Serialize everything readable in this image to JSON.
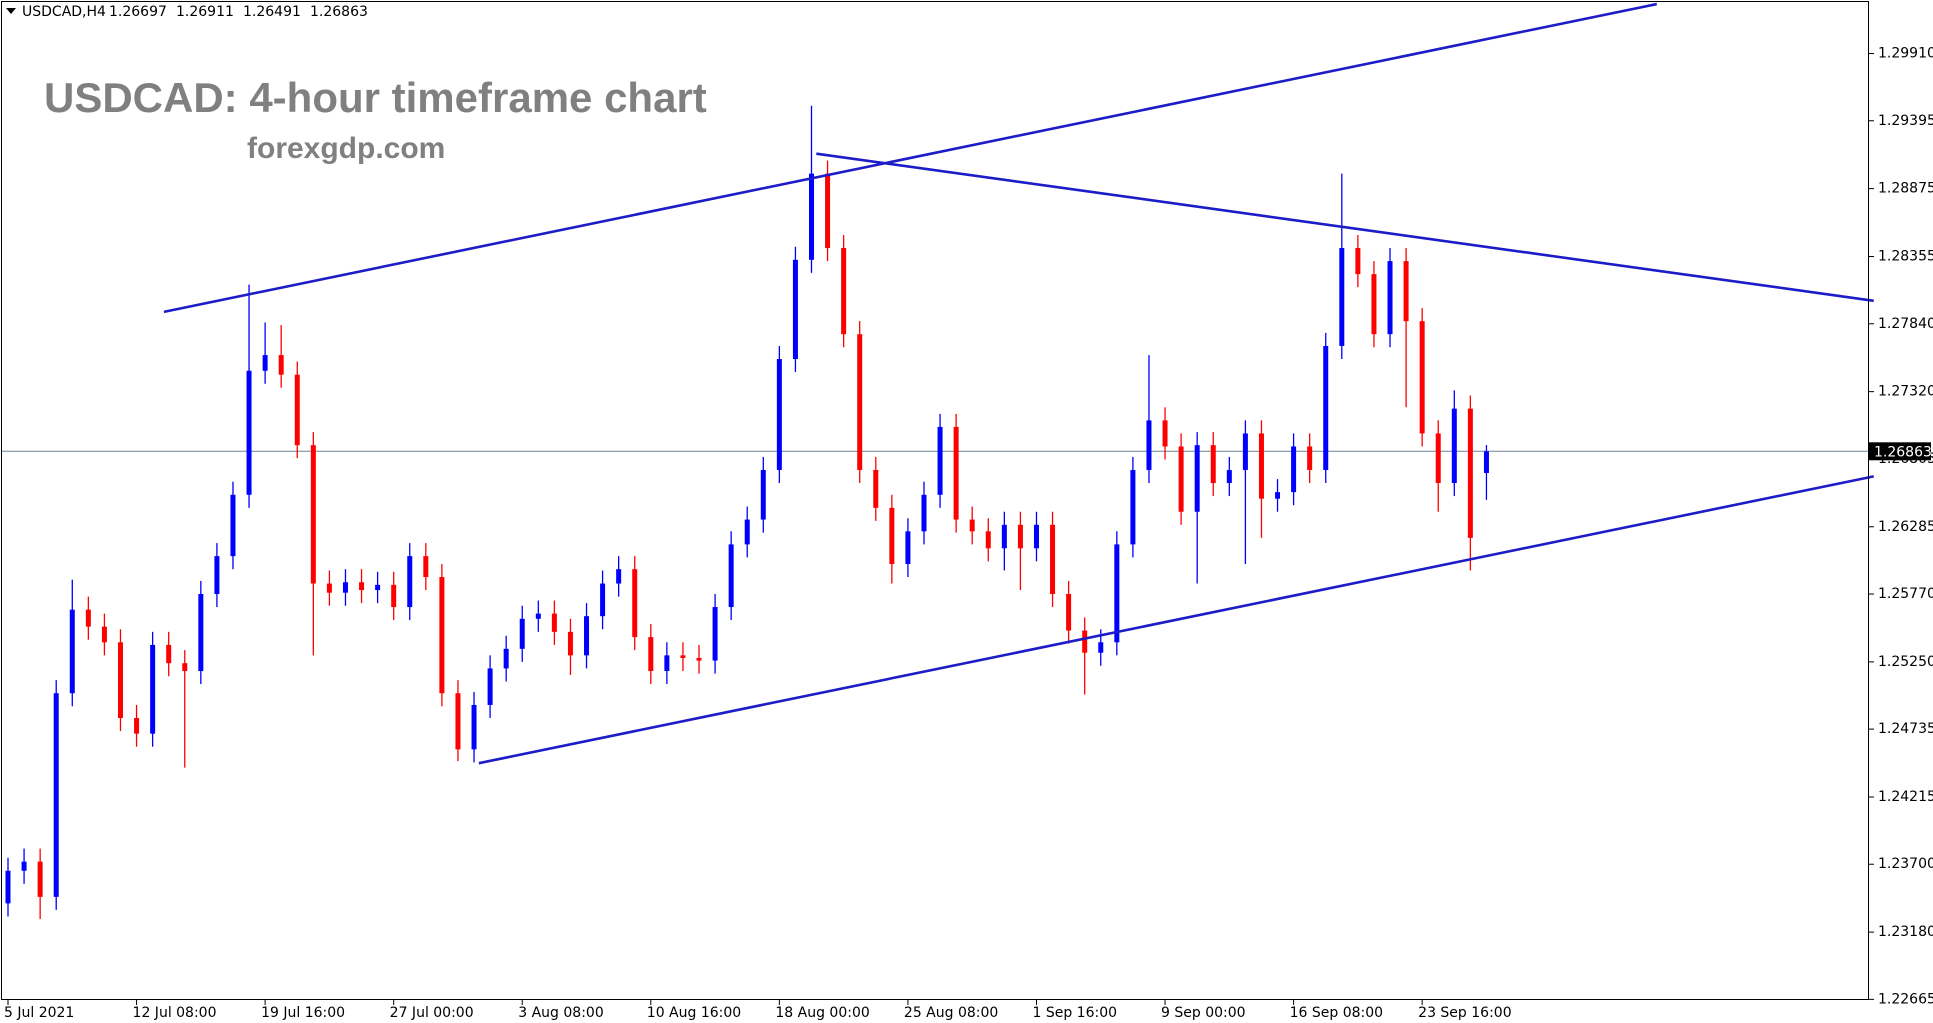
{
  "chart_data": {
    "type": "candlestick",
    "symbol": "USDCAD,H4",
    "title": "USDCAD: 4-hour timeframe chart",
    "subtitle": "forexgdp.com",
    "up_color": "#0000ff",
    "down_color": "#ff0000",
    "trendline_color": "#1c1cc8",
    "price_line_color": "#6f8596",
    "categories": [
      "5 Jul 2021",
      null,
      null,
      null,
      null,
      null,
      null,
      null,
      "12 Jul 08:00",
      null,
      null,
      null,
      null,
      null,
      null,
      null,
      "19 Jul 16:00",
      null,
      null,
      null,
      null,
      null,
      null,
      null,
      "27 Jul 00:00",
      null,
      null,
      null,
      null,
      null,
      null,
      null,
      "3 Aug 08:00",
      null,
      null,
      null,
      null,
      null,
      null,
      null,
      "10 Aug 16:00",
      null,
      null,
      null,
      null,
      null,
      null,
      null,
      "18 Aug 00:00",
      null,
      null,
      null,
      null,
      null,
      null,
      null,
      "25 Aug 08:00",
      null,
      null,
      null,
      null,
      null,
      null,
      null,
      "1 Sep 16:00",
      null,
      null,
      null,
      null,
      null,
      null,
      null,
      "9 Sep 00:00",
      null,
      null,
      null,
      null,
      null,
      null,
      null,
      "16 Sep 08:00",
      null,
      null,
      null,
      null,
      null,
      null,
      null,
      "23 Sep 16:00",
      null,
      null,
      null,
      null
    ],
    "open": [
      1.234,
      1.2365,
      1.2372,
      1.2345,
      1.2501,
      1.2565,
      1.2552,
      1.254,
      1.2482,
      1.247,
      1.2538,
      1.2524,
      1.2518,
      1.2577,
      1.2606,
      1.2653,
      1.2748,
      1.276,
      1.2745,
      1.2691,
      1.2585,
      1.2578,
      1.2586,
      1.258,
      1.2584,
      1.2567,
      1.2606,
      1.259,
      1.2501,
      1.2458,
      1.2492,
      1.252,
      1.2535,
      1.2558,
      1.2562,
      1.2548,
      1.253,
      1.256,
      1.2585,
      1.2596,
      1.2544,
      1.2518,
      1.253,
      1.2528,
      1.2526,
      1.2567,
      1.2615,
      1.2634,
      1.2672,
      1.2757,
      1.2833,
      1.2899,
      1.2842,
      1.2776,
      1.2672,
      1.2643,
      1.26,
      1.2625,
      1.2653,
      1.2705,
      1.2634,
      1.2625,
      1.2612,
      1.263,
      1.2612,
      1.263,
      1.2577,
      1.2549,
      1.2532,
      1.254,
      1.2615,
      1.2672,
      1.271,
      1.269,
      1.264,
      1.2691,
      1.2662,
      1.2672,
      1.27,
      1.265,
      1.2655,
      1.269,
      1.2672,
      1.2767,
      1.2842,
      1.2822,
      1.2776,
      1.2832,
      1.2786,
      1.27,
      1.2662,
      1.2719,
      1.26697
    ],
    "high": [
      1.2375,
      1.2382,
      1.2382,
      1.2511,
      1.2588,
      1.2575,
      1.2562,
      1.255,
      1.2492,
      1.2548,
      1.2548,
      1.2534,
      1.2587,
      1.2616,
      1.2663,
      1.2814,
      1.2785,
      1.2783,
      1.2755,
      1.2701,
      1.2595,
      1.2596,
      1.2596,
      1.2594,
      1.2594,
      1.2616,
      1.2616,
      1.26,
      1.2511,
      1.2502,
      1.253,
      1.2545,
      1.2568,
      1.2572,
      1.2572,
      1.2558,
      1.257,
      1.2595,
      1.2606,
      1.2606,
      1.2554,
      1.254,
      1.254,
      1.2538,
      1.2577,
      1.2625,
      1.2644,
      1.2682,
      1.2767,
      1.2843,
      1.2951,
      1.2909,
      1.2852,
      1.2786,
      1.2682,
      1.2653,
      1.2635,
      1.2663,
      1.2715,
      1.2715,
      1.2644,
      1.2635,
      1.264,
      1.264,
      1.264,
      1.264,
      1.2587,
      1.2559,
      1.255,
      1.2625,
      1.2682,
      1.276,
      1.272,
      1.27,
      1.2701,
      1.2701,
      1.2682,
      1.271,
      1.271,
      1.2665,
      1.27,
      1.27,
      1.2777,
      1.2899,
      1.2852,
      1.2832,
      1.2842,
      1.2842,
      1.2796,
      1.271,
      1.2733,
      1.2729,
      1.26911
    ],
    "low": [
      1.233,
      1.2355,
      1.2328,
      1.2335,
      1.2491,
      1.2542,
      1.253,
      1.2472,
      1.246,
      1.246,
      1.2514,
      1.2444,
      1.2508,
      1.2567,
      1.2596,
      1.2643,
      1.2738,
      1.2735,
      1.2681,
      1.253,
      1.2568,
      1.2568,
      1.257,
      1.257,
      1.2557,
      1.2557,
      1.258,
      1.2491,
      1.2449,
      1.2448,
      1.2482,
      1.251,
      1.2525,
      1.2548,
      1.2538,
      1.2515,
      1.252,
      1.255,
      1.2575,
      1.2534,
      1.2508,
      1.2508,
      1.2518,
      1.2516,
      1.2516,
      1.2557,
      1.2605,
      1.2624,
      1.2662,
      1.2747,
      1.2823,
      1.2832,
      1.2766,
      1.2662,
      1.2633,
      1.2585,
      1.259,
      1.2615,
      1.2643,
      1.2624,
      1.2615,
      1.2602,
      1.2595,
      1.258,
      1.2602,
      1.2567,
      1.2539,
      1.25,
      1.2522,
      1.253,
      1.2605,
      1.2662,
      1.268,
      1.263,
      1.2585,
      1.2652,
      1.2652,
      1.26,
      1.262,
      1.264,
      1.2645,
      1.2662,
      1.2662,
      1.2757,
      1.2812,
      1.2766,
      1.2766,
      1.272,
      1.269,
      1.264,
      1.2652,
      1.2595,
      1.26491
    ],
    "close": [
      1.2365,
      1.2372,
      1.2345,
      1.2501,
      1.2565,
      1.2552,
      1.254,
      1.2482,
      1.247,
      1.2538,
      1.2524,
      1.2518,
      1.2577,
      1.2606,
      1.2653,
      1.2748,
      1.276,
      1.2745,
      1.2691,
      1.2585,
      1.2578,
      1.2586,
      1.258,
      1.2584,
      1.2567,
      1.2606,
      1.259,
      1.2501,
      1.2458,
      1.2492,
      1.252,
      1.2535,
      1.2558,
      1.2562,
      1.2548,
      1.253,
      1.256,
      1.2585,
      1.2596,
      1.2544,
      1.2518,
      1.253,
      1.2528,
      1.2526,
      1.2567,
      1.2615,
      1.2634,
      1.2672,
      1.2757,
      1.2833,
      1.2899,
      1.2842,
      1.2776,
      1.2672,
      1.2643,
      1.26,
      1.2625,
      1.2653,
      1.2705,
      1.2634,
      1.2625,
      1.2612,
      1.263,
      1.2612,
      1.263,
      1.2577,
      1.2549,
      1.2532,
      1.254,
      1.2615,
      1.2672,
      1.271,
      1.269,
      1.264,
      1.2691,
      1.2662,
      1.2672,
      1.27,
      1.265,
      1.2655,
      1.269,
      1.2672,
      1.2767,
      1.2842,
      1.2822,
      1.2776,
      1.2832,
      1.2786,
      1.27,
      1.2662,
      1.2719,
      1.262,
      1.26863
    ],
    "trendlines": [
      {
        "x": [
          9.7,
          102.6
        ],
        "y": [
          1.27931,
          1.30289
        ]
      },
      {
        "x": [
          50.3,
          116.1
        ],
        "y": [
          1.29143,
          1.28016
        ]
      },
      {
        "x": [
          29.3,
          116.1
        ],
        "y": [
          1.24474,
          1.26671
        ]
      }
    ],
    "ylim": [
      1.2266,
      1.3032
    ],
    "yticks": [
      {
        "value": 1.2991,
        "label": "1.29910"
      },
      {
        "value": 1.29395,
        "label": "1.29395"
      },
      {
        "value": 1.28875,
        "label": "1.28875"
      },
      {
        "value": 1.28355,
        "label": "1.28355"
      },
      {
        "value": 1.2784,
        "label": "1.27840"
      },
      {
        "value": 1.2732,
        "label": "1.27320"
      },
      {
        "value": 1.26805,
        "label": "1.26805"
      },
      {
        "value": 1.26285,
        "label": "1.26285"
      },
      {
        "value": 1.2577,
        "label": "1.25770"
      },
      {
        "value": 1.2525,
        "label": "1.25250"
      },
      {
        "value": 1.24735,
        "label": "1.24735"
      },
      {
        "value": 1.24215,
        "label": "1.24215"
      },
      {
        "value": 1.237,
        "label": "1.23700"
      },
      {
        "value": 1.2318,
        "label": "1.23180"
      },
      {
        "value": 1.22665,
        "label": "1.22665"
      }
    ]
  }
}
